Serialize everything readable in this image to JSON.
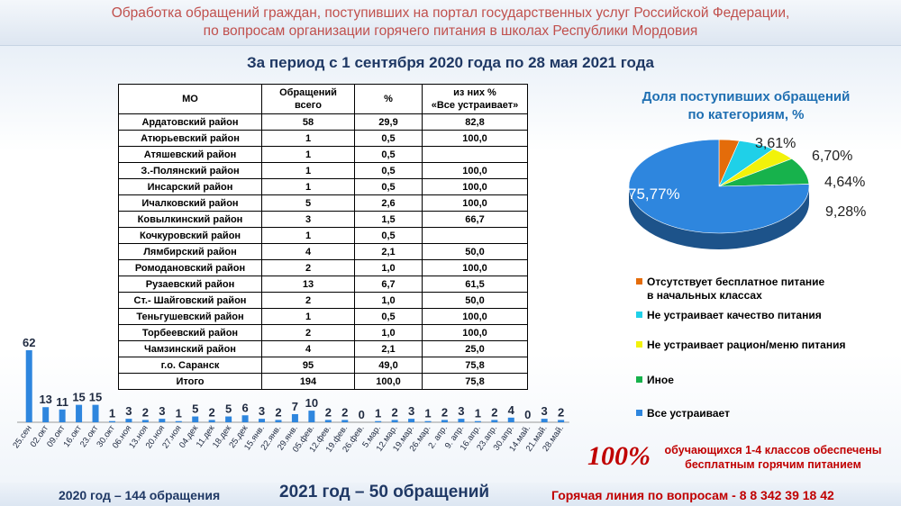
{
  "header": {
    "line1": "Обработка обращений граждан, поступивших на портал государственных услуг Российской Федерации,",
    "line2": "по вопросам организации горячего питания в школах Республики Мордовия"
  },
  "period": "За период с 1 сентября 2020 года по 28 мая 2021 года",
  "table": {
    "headers": {
      "mo": "МО",
      "total1": "Обращений",
      "total2": "всего",
      "pct": "%",
      "sat1": "из них %",
      "sat2": "«Все устраивает»"
    },
    "rows": [
      [
        "Ардатовский район",
        "58",
        "29,9",
        "82,8"
      ],
      [
        "Атюрьевский район",
        "1",
        "0,5",
        "100,0"
      ],
      [
        "Атяшевский район",
        "1",
        "0,5",
        ""
      ],
      [
        "З.-Полянский район",
        "1",
        "0,5",
        "100,0"
      ],
      [
        "Инсарский район",
        "1",
        "0,5",
        "100,0"
      ],
      [
        "Ичалковский район",
        "5",
        "2,6",
        "100,0"
      ],
      [
        "Ковылкинский район",
        "3",
        "1,5",
        "66,7"
      ],
      [
        "Кочкуровский район",
        "1",
        "0,5",
        ""
      ],
      [
        "Лямбирский район",
        "4",
        "2,1",
        "50,0"
      ],
      [
        "Ромодановский район",
        "2",
        "1,0",
        "100,0"
      ],
      [
        "Рузаевский район",
        "13",
        "6,7",
        "61,5"
      ],
      [
        "Ст.- Шайговский район",
        "2",
        "1,0",
        "50,0"
      ],
      [
        "Теньгушевский район",
        "1",
        "0,5",
        "100,0"
      ],
      [
        "Торбеевский район",
        "2",
        "1,0",
        "100,0"
      ],
      [
        "Чамзинский район",
        "4",
        "2,1",
        "25,0"
      ],
      [
        "г.о. Саранск",
        "95",
        "49,0",
        "75,8"
      ],
      [
        "Итого",
        "194",
        "100,0",
        "75,8"
      ]
    ]
  },
  "chart_data": [
    {
      "type": "pie",
      "title": "Доля поступивших обращений по категориям, %",
      "title_line1": "Доля поступивших обращений",
      "title_line2": "по категориям, %",
      "slices": [
        {
          "label": "Отсутствует бесплатное питание в начальных классах",
          "label_line1": "Отсутствует бесплатное питание",
          "label_line2": "в начальных классах",
          "value": 3.61,
          "text": "3,61%",
          "color": "#e46c0a"
        },
        {
          "label": "Не устраивает качество питания",
          "value": 6.7,
          "text": "6,70%",
          "color": "#1fd0e8"
        },
        {
          "label": "Не устраивает рацион/меню питания",
          "value": 4.64,
          "text": "4,64%",
          "color": "#f2f20a"
        },
        {
          "label": "Иное",
          "value": 9.28,
          "text": "9,28%",
          "color": "#17b24c"
        },
        {
          "label": "Все устраивает",
          "value": 75.77,
          "text": "75,77%",
          "color": "#2e86de"
        }
      ]
    },
    {
      "type": "bar",
      "categories": [
        "25.сен",
        "02.окт",
        "09.окт",
        "16.окт",
        "23.окт",
        "30.окт",
        "06.ноя",
        "13.ноя",
        "20.ноя",
        "27.ноя",
        "04.дек",
        "11.дек",
        "18.дек",
        "25.дек",
        "15.янв.",
        "22.янв.",
        "29.янв.",
        "05.фев.",
        "12.фев.",
        "19.фев.",
        "26.фев.",
        "5.мар.",
        "12.мар.",
        "19.мар.",
        "26.мар.",
        "2. апр.",
        "9. апр.",
        "16.апр.",
        "23.апр.",
        "30.апр.",
        "14.май.",
        "21.май.",
        "28.май."
      ],
      "values": [
        62,
        13,
        11,
        15,
        15,
        1,
        3,
        2,
        3,
        1,
        5,
        2,
        5,
        6,
        3,
        2,
        7,
        10,
        2,
        2,
        0,
        1,
        2,
        3,
        1,
        2,
        3,
        1,
        2,
        4,
        0,
        3,
        2
      ],
      "color": "#2e86de"
    }
  ],
  "highlight": {
    "big": "100%",
    "line1": "обучающихся 1-4 классов обеспечены",
    "line2": "бесплатным горячим питанием"
  },
  "footer": {
    "y2020": "2020 год – 144 обращения",
    "y2021": "2021 год – 50 обращений",
    "hotline": "Горячая линия по вопросам - 8 8 342 39 18 42"
  }
}
